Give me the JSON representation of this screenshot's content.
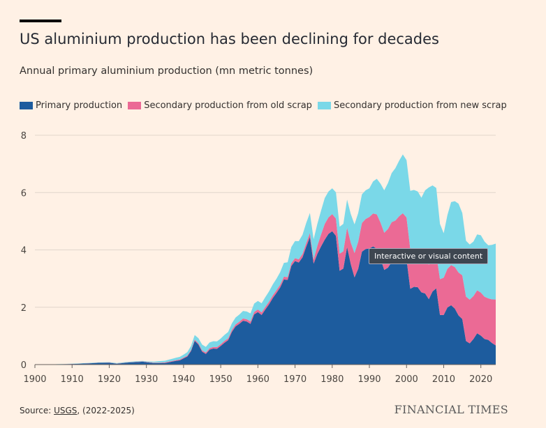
{
  "header": {
    "title": "US aluminium production has been declining for decades",
    "subtitle": "Annual primary aluminium production (mn metric tonnes)"
  },
  "tooltip": "Interactive or visual content",
  "footer": {
    "source_prefix": "Source: ",
    "source_link": "USGS",
    "source_suffix": ", (2022-2025)",
    "brand": "FINANCIAL TIMES"
  },
  "colors": {
    "primary": "#1d5c9e",
    "old_scrap": "#eb6a95",
    "new_scrap": "#7ad8e8",
    "grid": "#e0d6cc",
    "axis": "#66605c"
  },
  "chart_data": {
    "type": "area",
    "stacked": true,
    "title": "US aluminium production has been declining for decades",
    "ylabel": "Annual primary aluminium production (mn metric tonnes)",
    "xlim": [
      1900,
      2024
    ],
    "ylim": [
      0,
      8
    ],
    "x_ticks": [
      "1900",
      "1910",
      "1920",
      "1930",
      "1940",
      "1950",
      "1960",
      "1970",
      "1980",
      "1990",
      "2000",
      "2010",
      "2020"
    ],
    "y_ticks": [
      "0",
      "2",
      "4",
      "6",
      "8"
    ],
    "grid": true,
    "legend_position": "top",
    "series": [
      {
        "name": "Primary production",
        "color": "#1d5c9e",
        "points": [
          [
            1900,
            0.003
          ],
          [
            1905,
            0.005
          ],
          [
            1910,
            0.02
          ],
          [
            1915,
            0.045
          ],
          [
            1917,
            0.06
          ],
          [
            1920,
            0.065
          ],
          [
            1922,
            0.03
          ],
          [
            1925,
            0.07
          ],
          [
            1929,
            0.1
          ],
          [
            1932,
            0.05
          ],
          [
            1935,
            0.055
          ],
          [
            1938,
            0.13
          ],
          [
            1939,
            0.15
          ],
          [
            1941,
            0.28
          ],
          [
            1942,
            0.47
          ],
          [
            1943,
            0.83
          ],
          [
            1944,
            0.7
          ],
          [
            1945,
            0.45
          ],
          [
            1946,
            0.37
          ],
          [
            1947,
            0.52
          ],
          [
            1948,
            0.56
          ],
          [
            1949,
            0.55
          ],
          [
            1950,
            0.65
          ],
          [
            1951,
            0.76
          ],
          [
            1952,
            0.85
          ],
          [
            1953,
            1.14
          ],
          [
            1954,
            1.33
          ],
          [
            1955,
            1.42
          ],
          [
            1956,
            1.53
          ],
          [
            1957,
            1.5
          ],
          [
            1958,
            1.42
          ],
          [
            1959,
            1.75
          ],
          [
            1960,
            1.83
          ],
          [
            1961,
            1.73
          ],
          [
            1962,
            1.92
          ],
          [
            1963,
            2.1
          ],
          [
            1964,
            2.32
          ],
          [
            1965,
            2.5
          ],
          [
            1966,
            2.69
          ],
          [
            1967,
            2.97
          ],
          [
            1968,
            2.95
          ],
          [
            1969,
            3.44
          ],
          [
            1970,
            3.61
          ],
          [
            1971,
            3.56
          ],
          [
            1972,
            3.74
          ],
          [
            1973,
            4.11
          ],
          [
            1974,
            4.45
          ],
          [
            1975,
            3.52
          ],
          [
            1976,
            3.86
          ],
          [
            1977,
            4.12
          ],
          [
            1978,
            4.36
          ],
          [
            1979,
            4.56
          ],
          [
            1980,
            4.65
          ],
          [
            1981,
            4.49
          ],
          [
            1982,
            3.27
          ],
          [
            1983,
            3.35
          ],
          [
            1984,
            4.1
          ],
          [
            1985,
            3.5
          ],
          [
            1986,
            3.04
          ],
          [
            1987,
            3.34
          ],
          [
            1988,
            3.94
          ],
          [
            1989,
            4.03
          ],
          [
            1990,
            4.05
          ],
          [
            1991,
            4.12
          ],
          [
            1992,
            4.04
          ],
          [
            1993,
            3.7
          ],
          [
            1994,
            3.3
          ],
          [
            1995,
            3.38
          ],
          [
            1996,
            3.58
          ],
          [
            1997,
            3.6
          ],
          [
            1998,
            3.71
          ],
          [
            1999,
            3.78
          ],
          [
            2000,
            3.67
          ],
          [
            2001,
            2.64
          ],
          [
            2002,
            2.71
          ],
          [
            2003,
            2.7
          ],
          [
            2004,
            2.52
          ],
          [
            2005,
            2.48
          ],
          [
            2006,
            2.28
          ],
          [
            2007,
            2.55
          ],
          [
            2008,
            2.66
          ],
          [
            2009,
            1.73
          ],
          [
            2010,
            1.73
          ],
          [
            2011,
            1.99
          ],
          [
            2012,
            2.07
          ],
          [
            2013,
            1.95
          ],
          [
            2014,
            1.71
          ],
          [
            2015,
            1.59
          ],
          [
            2016,
            0.82
          ],
          [
            2017,
            0.74
          ],
          [
            2018,
            0.89
          ],
          [
            2019,
            1.09
          ],
          [
            2020,
            1.01
          ],
          [
            2021,
            0.89
          ],
          [
            2022,
            0.86
          ],
          [
            2023,
            0.75
          ],
          [
            2024,
            0.67
          ]
        ]
      },
      {
        "name": "Secondary production from old scrap",
        "color": "#eb6a95",
        "points": [
          [
            1900,
            0
          ],
          [
            1930,
            0.01
          ],
          [
            1940,
            0.03
          ],
          [
            1950,
            0.06
          ],
          [
            1960,
            0.09
          ],
          [
            1970,
            0.1
          ],
          [
            1975,
            0.15
          ],
          [
            1978,
            0.55
          ],
          [
            1980,
            0.6
          ],
          [
            1983,
            0.6
          ],
          [
            1985,
            0.75
          ],
          [
            1987,
            0.95
          ],
          [
            1990,
            1.1
          ],
          [
            1995,
            1.35
          ],
          [
            1999,
            1.5
          ],
          [
            2000,
            1.46
          ],
          [
            2004,
            1.2
          ],
          [
            2008,
            1.2
          ],
          [
            2010,
            1.3
          ],
          [
            2014,
            1.5
          ],
          [
            2016,
            1.55
          ],
          [
            2018,
            1.5
          ],
          [
            2020,
            1.5
          ],
          [
            2022,
            1.45
          ],
          [
            2024,
            1.6
          ]
        ]
      },
      {
        "name": "Secondary production from new scrap",
        "color": "#7ad8e8",
        "points": [
          [
            1900,
            0
          ],
          [
            1930,
            0.02
          ],
          [
            1940,
            0.1
          ],
          [
            1945,
            0.2
          ],
          [
            1950,
            0.2
          ],
          [
            1960,
            0.3
          ],
          [
            1965,
            0.4
          ],
          [
            1970,
            0.6
          ],
          [
            1973,
            0.7
          ],
          [
            1975,
            0.7
          ],
          [
            1978,
            0.9
          ],
          [
            1980,
            0.9
          ],
          [
            1985,
            1.0
          ],
          [
            1990,
            1.0
          ],
          [
            1995,
            1.6
          ],
          [
            1999,
            2.05
          ],
          [
            2000,
            2.0
          ],
          [
            2002,
            2.05
          ],
          [
            2004,
            2.1
          ],
          [
            2006,
            2.7
          ],
          [
            2008,
            2.3
          ],
          [
            2010,
            1.55
          ],
          [
            2012,
            2.2
          ],
          [
            2014,
            2.4
          ],
          [
            2016,
            1.95
          ],
          [
            2018,
            1.9
          ],
          [
            2020,
            2.0
          ],
          [
            2022,
            1.85
          ],
          [
            2024,
            1.95
          ]
        ]
      }
    ]
  }
}
